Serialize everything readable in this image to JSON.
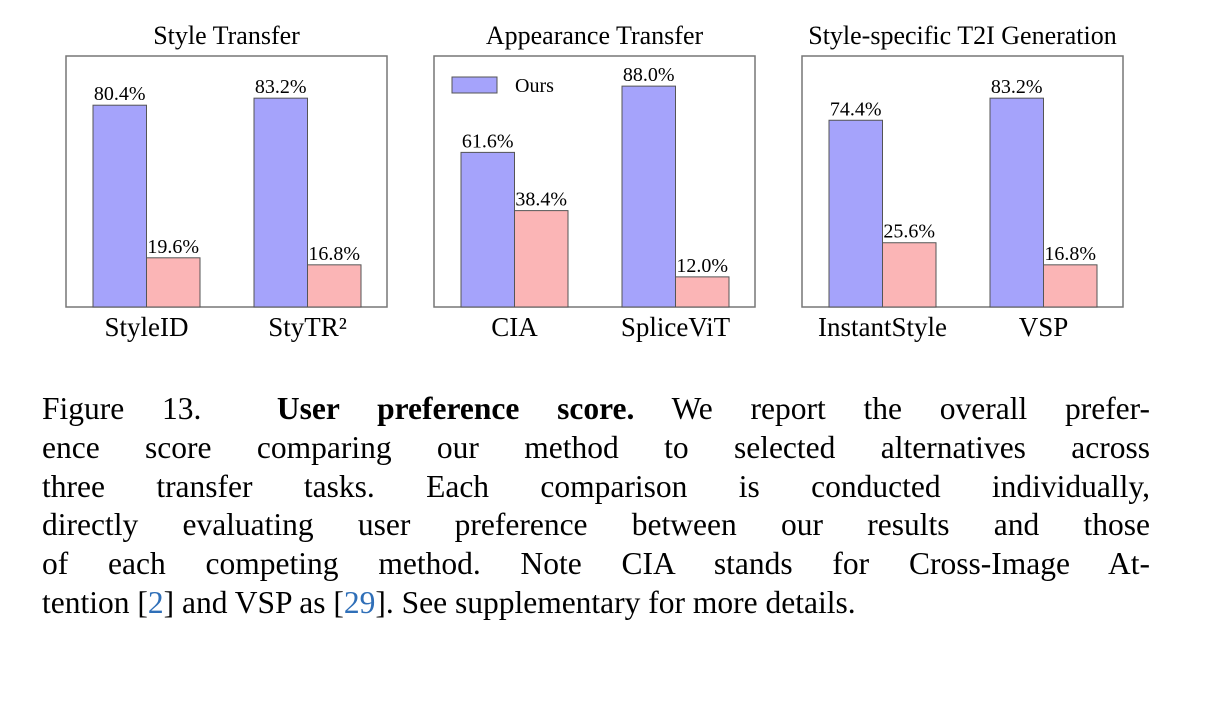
{
  "chart_data": [
    {
      "type": "bar",
      "title": "Style Transfer",
      "categories": [
        "StyleID",
        "StyTR²"
      ],
      "series": [
        {
          "name": "Ours",
          "values": [
            80.4,
            83.2
          ]
        },
        {
          "values": [
            19.6,
            16.8
          ]
        }
      ],
      "labels": [
        [
          "80.4%",
          "83.2%"
        ],
        [
          "19.6%",
          "16.8%"
        ]
      ],
      "ylim": [
        0,
        100
      ],
      "grid": false
    },
    {
      "type": "bar",
      "title": "Appearance Transfer",
      "categories": [
        "CIA",
        "SpliceViT"
      ],
      "series": [
        {
          "name": "Ours",
          "values": [
            61.6,
            88.0
          ]
        },
        {
          "values": [
            38.4,
            12.0
          ]
        }
      ],
      "labels": [
        [
          "61.6%",
          "88.0%"
        ],
        [
          "38.4%",
          "12.0%"
        ]
      ],
      "ylim": [
        0,
        100
      ],
      "grid": false,
      "legend": "top-left"
    },
    {
      "type": "bar",
      "title": "Style-specific T2I Generation",
      "categories": [
        "InstantStyle",
        "VSP"
      ],
      "series": [
        {
          "name": "Ours",
          "values": [
            74.4,
            83.2
          ]
        },
        {
          "values": [
            25.6,
            16.8
          ]
        }
      ],
      "labels": [
        [
          "74.4%",
          "83.2%"
        ],
        [
          "25.6%",
          "16.8%"
        ]
      ],
      "ylim": [
        0,
        100
      ],
      "grid": false
    }
  ],
  "colors": {
    "ours": "#a5a3fb",
    "other": "#fbb5b6",
    "edge": "#555555",
    "link": "#2f6fb8"
  },
  "caption": {
    "label": "Figure 13.",
    "title": "User preference score.",
    "line0": " We report the overall prefer-",
    "line1": "ence score comparing our method to selected alternatives across",
    "line2": "three transfer tasks.  Each comparison is conducted individually,",
    "line3": "directly evaluating user preference between our results and those",
    "line4": "of each competing method. Note CIA stands for Cross-Image At-",
    "line5a": "tention [",
    "ref1": "2",
    "line5b": "] and VSP as [",
    "ref2": "29",
    "line5c": "]. See supplementary for more details."
  }
}
